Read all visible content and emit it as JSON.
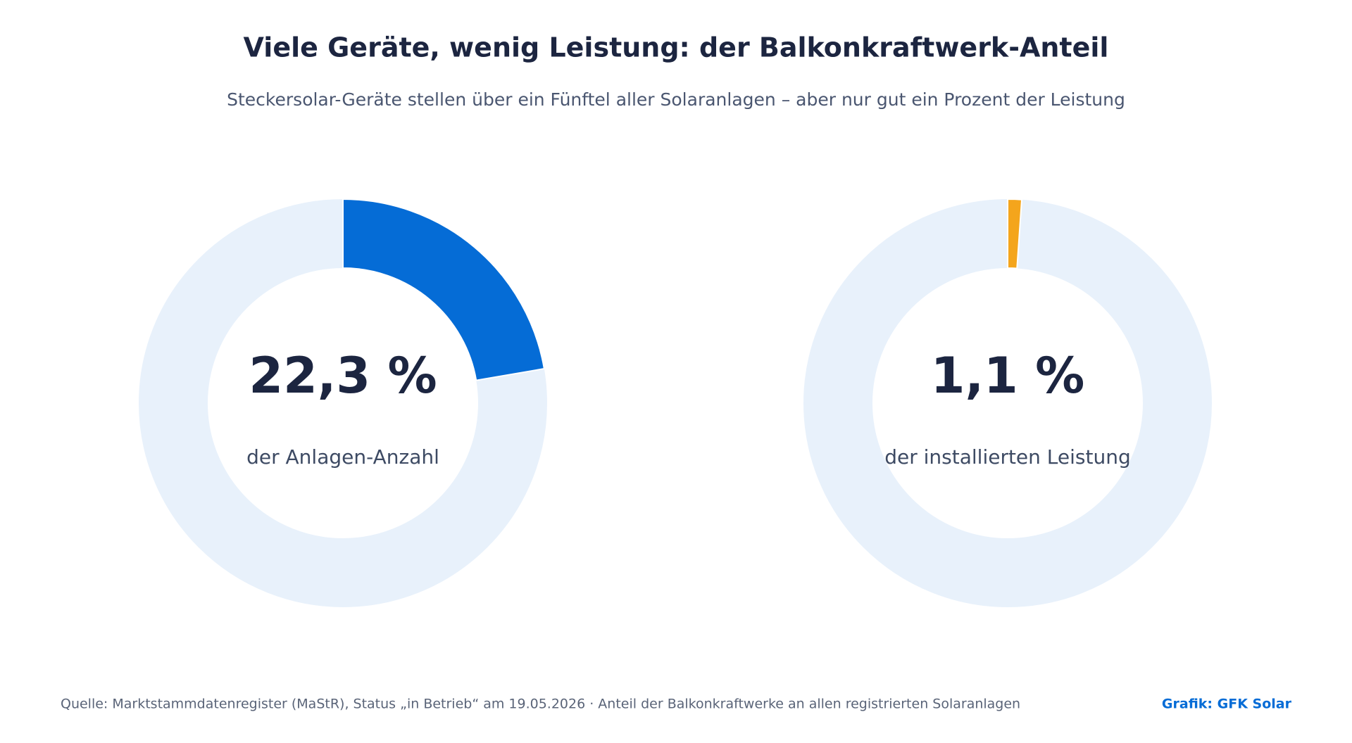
{
  "header": {
    "title": "Viele Geräte, wenig Leistung: der Balkonkraftwerk-Anteil",
    "subtitle": "Steckersolar-Geräte stellen über ein Fünftel aller Solaranlagen – aber nur gut ein Prozent der Leistung"
  },
  "chart_data": [
    {
      "type": "donut",
      "values": [
        22.3
      ],
      "value_labels": [
        "22,3 %"
      ],
      "subtitle": "der Anlagen-Anzahl",
      "color": "#056cd6",
      "track_color": "#e8f1fb"
    },
    {
      "type": "donut",
      "values": [
        1.1
      ],
      "value_labels": [
        "1,1 %"
      ],
      "subtitle": "der installierten Leistung",
      "color": "#f4a51c",
      "track_color": "#e8f1fb"
    }
  ],
  "footer": {
    "source": "Quelle: Marktstammdatenregister (MaStR), Status „in Betrieb“ am 19.05.2026 · Anteil der Balkonkraftwerke an allen registrierten Solaranlagen",
    "credit": "Grafik: GFK Solar"
  }
}
